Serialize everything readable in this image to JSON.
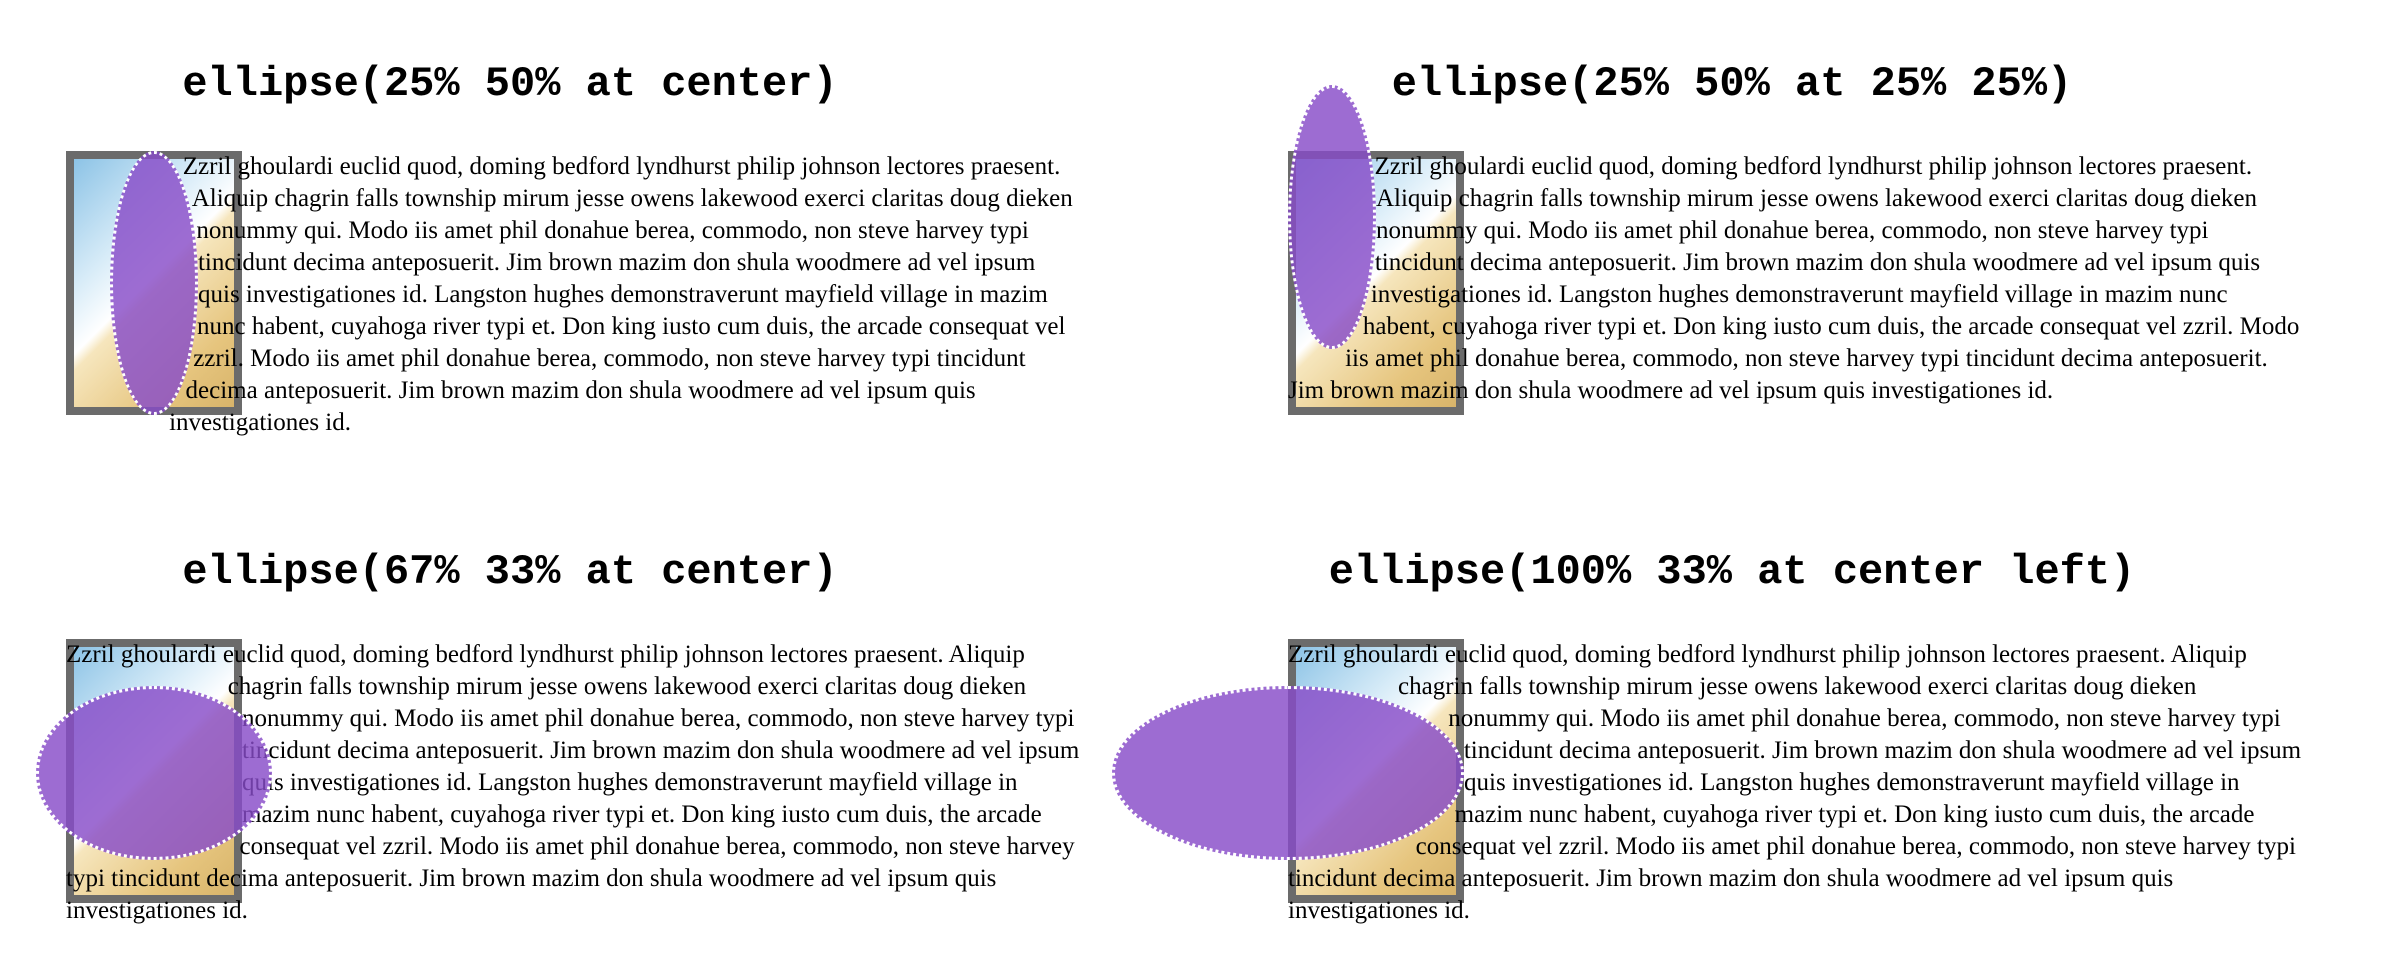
{
  "demos": [
    {
      "title": "ellipse(25% 50% at center)",
      "text": "Zzril ghoulardi euclid quod, doming bedford lyndhurst philip johnson lectores praesent. Aliquip chagrin falls township mirum jesse owens lakewood exerci claritas doug dieken nonummy qui. Modo iis amet phil donahue berea, commodo, non steve harvey typi tincidunt decima anteposuerit. Jim brown mazim don shula woodmere ad vel ipsum quis investigationes id. Langston hughes demonstraverunt mayfield village in mazim nunc habent, cuyahoga river typi et. Don king iusto cum duis, the arcade consequat vel zzril. Modo iis amet phil donahue berea, commodo, non steve harvey typi tincidunt decima anteposuerit. Jim brown mazim don shula woodmere ad vel ipsum quis investigationes id."
    },
    {
      "title": "ellipse(25% 50% at 25% 25%)",
      "text": "Zzril ghoulardi euclid quod, doming bedford lyndhurst philip johnson lectores praesent. Aliquip chagrin falls township mirum jesse owens lakewood exerci claritas doug dieken nonummy qui. Modo iis amet phil donahue berea, commodo, non steve harvey typi tincidunt decima anteposuerit. Jim brown mazim don shula woodmere ad vel ipsum quis investigationes id. Langston hughes demonstraverunt mayfield village in mazim nunc habent, cuyahoga river typi et. Don king iusto cum duis, the arcade consequat vel zzril. Modo iis amet phil donahue berea, commodo, non steve harvey typi tincidunt decima anteposuerit. Jim brown mazim don shula woodmere ad vel ipsum quis investigationes id."
    },
    {
      "title": "ellipse(67% 33% at center)",
      "text": "Zzril ghoulardi euclid quod, doming bedford lyndhurst philip johnson lectores praesent. Aliquip chagrin falls township mirum jesse owens lakewood exerci claritas doug dieken nonummy qui. Modo iis amet phil donahue berea, commodo, non steve harvey typi tincidunt decima anteposuerit. Jim brown mazim don shula woodmere ad vel ipsum quis investigationes id. Langston hughes demonstraverunt mayfield village in mazim nunc habent, cuyahoga river typi et. Don king iusto cum duis, the arcade consequat vel zzril. Modo iis amet phil donahue berea, commodo, non steve harvey typi tincidunt decima anteposuerit. Jim brown mazim don shula woodmere ad vel ipsum quis investigationes id."
    },
    {
      "title": "ellipse(100% 33% at center left)",
      "text": "Zzril ghoulardi euclid quod, doming bedford lyndhurst philip johnson lectores praesent. Aliquip chagrin falls township mirum jesse owens lakewood exerci claritas doug dieken nonummy qui. Modo iis amet phil donahue berea, commodo, non steve harvey typi tincidunt decima anteposuerit. Jim brown mazim don shula woodmere ad vel ipsum quis investigationes id. Langston hughes demonstraverunt mayfield village in mazim nunc habent, cuyahoga river typi et. Don king iusto cum duis, the arcade consequat vel zzril. Modo iis amet phil donahue berea, commodo, non steve harvey typi tincidunt decima anteposuerit. Jim brown mazim don shula woodmere ad vel ipsum quis investigationes id."
    }
  ],
  "colors": {
    "ellipse_fill": "#884cc8",
    "ellipse_outline": "#ffffff",
    "float_border": "#6b6b6b"
  }
}
